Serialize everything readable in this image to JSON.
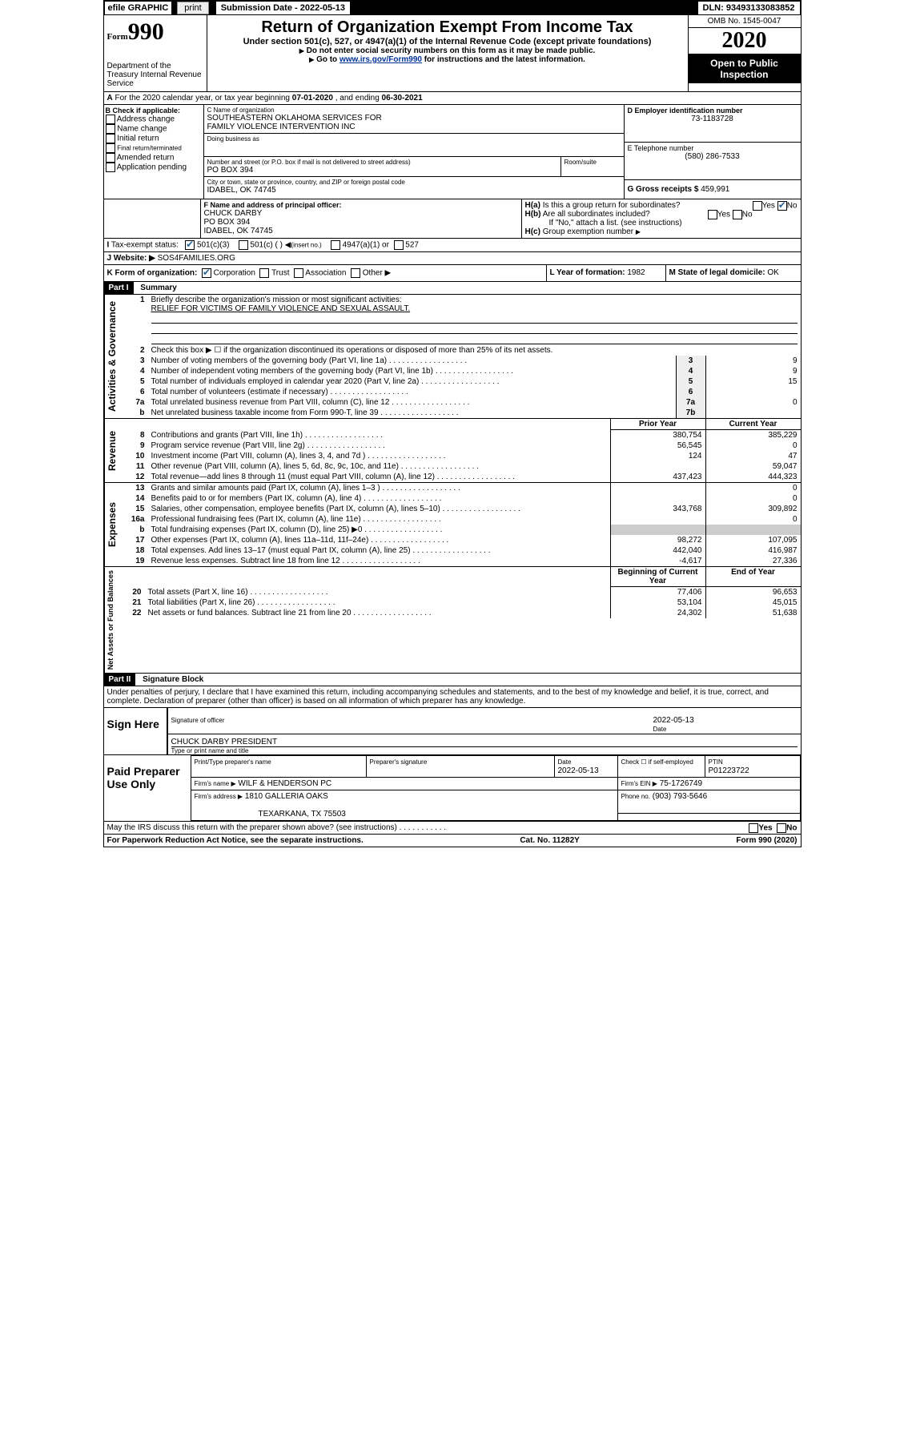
{
  "topbar": {
    "efile": "efile GRAPHIC",
    "print": "print",
    "submission": "Submission Date - 2022-05-13",
    "dln": "DLN: 93493133083852"
  },
  "header": {
    "form_label": "Form",
    "form_number": "990",
    "title": "Return of Organization Exempt From Income Tax",
    "subtitle": "Under section 501(c), 527, or 4947(a)(1) of the Internal Revenue Code (except private foundations)",
    "note1": "Do not enter social security numbers on this form as it may be made public.",
    "note2_a": "Go to ",
    "note2_link": "www.irs.gov/Form990",
    "note2_b": " for instructions and the latest information.",
    "dept": "Department of the Treasury\nInternal Revenue Service",
    "omb": "OMB No. 1545-0047",
    "year": "2020",
    "inspection": "Open to Public Inspection"
  },
  "period": {
    "label_a": "For the 2020 calendar year, or tax year beginning ",
    "start": "07-01-2020",
    "label_b": " , and ending ",
    "end": "06-30-2021"
  },
  "boxB": {
    "title": "B Check if applicable:",
    "items": [
      "Address change",
      "Name change",
      "Initial return",
      "Final return/terminated",
      "Amended return",
      "Application pending"
    ]
  },
  "boxC": {
    "label": "C Name of organization",
    "name1": "SOUTHEASTERN OKLAHOMA SERVICES FOR",
    "name2": "FAMILY VIOLENCE INTERVENTION INC",
    "dba_label": "Doing business as",
    "street_label": "Number and street (or P.O. box if mail is not delivered to street address)",
    "room_label": "Room/suite",
    "street": "PO BOX 394",
    "city_label": "City or town, state or province, country, and ZIP or foreign postal code",
    "city": "IDABEL, OK  74745"
  },
  "boxD": {
    "label": "D Employer identification number",
    "value": "73-1183728"
  },
  "boxE": {
    "label": "E Telephone number",
    "value": "(580) 286-7533"
  },
  "boxG": {
    "label": "G Gross receipts $",
    "value": "459,991"
  },
  "boxF": {
    "label": "F Name and address of principal officer:",
    "name": "CHUCK DARBY",
    "street": "PO BOX 394",
    "city": "IDABEL, OK  74745"
  },
  "boxH": {
    "a_label": "Is this a group return for subordinates?",
    "a_yes": "Yes",
    "a_no": "No",
    "b_label": "Are all subordinates included?",
    "b_note": "If \"No,\" attach a list. (see instructions)",
    "c_label": "Group exemption number"
  },
  "boxI": {
    "label": "Tax-exempt status:",
    "opt1": "501(c)(3)",
    "opt2": "501(c) (   )",
    "opt2_note": "(insert no.)",
    "opt3": "4947(a)(1) or",
    "opt4": "527"
  },
  "boxJ": {
    "label": "Website:",
    "value": "SOS4FAMILIES.ORG"
  },
  "boxK": {
    "label": "K Form of organization:",
    "opts": [
      "Corporation",
      "Trust",
      "Association",
      "Other"
    ]
  },
  "boxL": {
    "label": "L Year of formation:",
    "value": "1982"
  },
  "boxM": {
    "label": "M State of legal domicile:",
    "value": "OK"
  },
  "part1": {
    "header": "Part I",
    "title": "Summary",
    "line1_label": "Briefly describe the organization's mission or most significant activities:",
    "line1_value": "RELIEF FOR VICTIMS OF FAMILY VIOLENCE AND SEXUAL ASSAULT.",
    "line2_label": "Check this box ▶ ☐ if the organization discontinued its operations or disposed of more than 25% of its net assets.",
    "gov_label": "Activities & Governance",
    "rev_label": "Revenue",
    "exp_label": "Expenses",
    "net_label": "Net Assets or Fund Balances",
    "lines_simple": [
      {
        "n": "3",
        "desc": "Number of voting members of the governing body (Part VI, line 1a)",
        "val": "9"
      },
      {
        "n": "4",
        "desc": "Number of independent voting members of the governing body (Part VI, line 1b)",
        "val": "9"
      },
      {
        "n": "5",
        "desc": "Total number of individuals employed in calendar year 2020 (Part V, line 2a)",
        "val": "15"
      },
      {
        "n": "6",
        "desc": "Total number of volunteers (estimate if necessary)",
        "val": ""
      },
      {
        "n": "7a",
        "desc": "Total unrelated business revenue from Part VIII, column (C), line 12",
        "val": "0"
      },
      {
        "n": "b",
        "desc": "Net unrelated business taxable income from Form 990-T, line 39",
        "ln": "7b",
        "val": ""
      }
    ],
    "col_prior": "Prior Year",
    "col_current": "Current Year",
    "lines_rev": [
      {
        "n": "8",
        "desc": "Contributions and grants (Part VIII, line 1h)",
        "p": "380,754",
        "c": "385,229"
      },
      {
        "n": "9",
        "desc": "Program service revenue (Part VIII, line 2g)",
        "p": "56,545",
        "c": "0"
      },
      {
        "n": "10",
        "desc": "Investment income (Part VIII, column (A), lines 3, 4, and 7d )",
        "p": "124",
        "c": "47"
      },
      {
        "n": "11",
        "desc": "Other revenue (Part VIII, column (A), lines 5, 6d, 8c, 9c, 10c, and 11e)",
        "p": "",
        "c": "59,047"
      },
      {
        "n": "12",
        "desc": "Total revenue—add lines 8 through 11 (must equal Part VIII, column (A), line 12)",
        "p": "437,423",
        "c": "444,323"
      }
    ],
    "lines_exp": [
      {
        "n": "13",
        "desc": "Grants and similar amounts paid (Part IX, column (A), lines 1–3 )",
        "p": "",
        "c": "0"
      },
      {
        "n": "14",
        "desc": "Benefits paid to or for members (Part IX, column (A), line 4)",
        "p": "",
        "c": "0"
      },
      {
        "n": "15",
        "desc": "Salaries, other compensation, employee benefits (Part IX, column (A), lines 5–10)",
        "p": "343,768",
        "c": "309,892"
      },
      {
        "n": "16a",
        "desc": "Professional fundraising fees (Part IX, column (A), line 11e)",
        "p": "",
        "c": "0"
      },
      {
        "n": "b",
        "desc": "Total fundraising expenses (Part IX, column (D), line 25) ▶0",
        "p": "SHADE",
        "c": "SHADE"
      },
      {
        "n": "17",
        "desc": "Other expenses (Part IX, column (A), lines 11a–11d, 11f–24e)",
        "p": "98,272",
        "c": "107,095"
      },
      {
        "n": "18",
        "desc": "Total expenses. Add lines 13–17 (must equal Part IX, column (A), line 25)",
        "p": "442,040",
        "c": "416,987"
      },
      {
        "n": "19",
        "desc": "Revenue less expenses. Subtract line 18 from line 12",
        "p": "-4,617",
        "c": "27,336"
      }
    ],
    "col_begin": "Beginning of Current Year",
    "col_end": "End of Year",
    "lines_net": [
      {
        "n": "20",
        "desc": "Total assets (Part X, line 16)",
        "p": "77,406",
        "c": "96,653"
      },
      {
        "n": "21",
        "desc": "Total liabilities (Part X, line 26)",
        "p": "53,104",
        "c": "45,015"
      },
      {
        "n": "22",
        "desc": "Net assets or fund balances. Subtract line 21 from line 20",
        "p": "24,302",
        "c": "51,638"
      }
    ]
  },
  "part2": {
    "header": "Part II",
    "title": "Signature Block",
    "penalty": "Under penalties of perjury, I declare that I have examined this return, including accompanying schedules and statements, and to the best of my knowledge and belief, it is true, correct, and complete. Declaration of preparer (other than officer) is based on all information of which preparer has any knowledge.",
    "sign_here": "Sign Here",
    "sig_officer": "Signature of officer",
    "sig_date": "2022-05-13",
    "date_label": "Date",
    "officer_name": "CHUCK DARBY PRESIDENT",
    "type_name": "Type or print name and title",
    "paid": "Paid Preparer Use Only",
    "prep_name_label": "Print/Type preparer's name",
    "prep_sig_label": "Preparer's signature",
    "prep_date_label": "Date",
    "prep_date": "2022-05-13",
    "check_self": "Check ☐ if self-employed",
    "ptin_label": "PTIN",
    "ptin": "P01223722",
    "firm_name_label": "Firm's name    ▶",
    "firm_name": "WILF & HENDERSON PC",
    "firm_ein_label": "Firm's EIN ▶",
    "firm_ein": "75-1726749",
    "firm_addr_label": "Firm's address ▶",
    "firm_addr1": "1810 GALLERIA OAKS",
    "firm_addr2": "TEXARKANA, TX  75503",
    "phone_label": "Phone no.",
    "phone": "(903) 793-5646",
    "discuss": "May the IRS discuss this return with the preparer shown above? (see instructions)",
    "yes": "Yes",
    "no": "No"
  },
  "footer": {
    "paperwork": "For Paperwork Reduction Act Notice, see the separate instructions.",
    "catno": "Cat. No. 11282Y",
    "formno": "Form 990 (2020)"
  }
}
